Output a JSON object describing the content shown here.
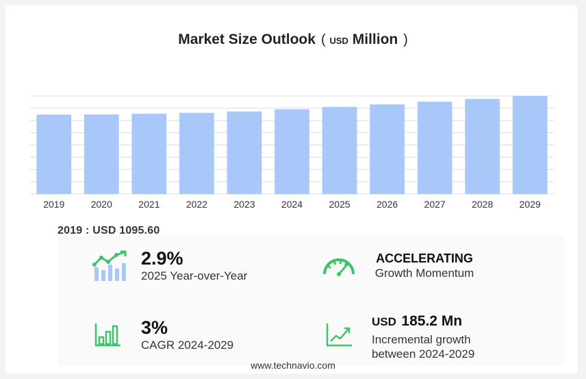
{
  "title": {
    "main": "Market Size Outlook",
    "paren_open": "(",
    "unit_small": "USD",
    "unit": "Million",
    "paren_close": ")"
  },
  "chart_data": {
    "type": "bar",
    "title": "Market Size Outlook (USD Million)",
    "categories": [
      "2019",
      "2020",
      "2021",
      "2022",
      "2023",
      "2024",
      "2025",
      "2026",
      "2027",
      "2028",
      "2029"
    ],
    "values": [
      1095.6,
      1096.7,
      1106.4,
      1118.8,
      1138.7,
      1167.6,
      1201.5,
      1236.3,
      1273.8,
      1311.0,
      1352.8
    ],
    "ylim": [
      0,
      1352.8
    ],
    "xlabel": "",
    "ylabel": "",
    "grid": true,
    "bar_color": "#a8c8fa"
  },
  "base_value": "2019 : USD  1095.60",
  "stats": {
    "yoy": {
      "value": "2.9%",
      "label": "2025 Year-over-Year",
      "icon": "growth-chart-icon"
    },
    "momentum": {
      "value": "ACCELERATING",
      "label": "Growth Momentum",
      "icon": "speedometer-icon"
    },
    "cagr": {
      "value": "3%",
      "label": "CAGR 2024-2029",
      "icon": "bar-chart-icon"
    },
    "incremental": {
      "currency": "USD",
      "value": "185.2 Mn",
      "label_line1": "Incremental growth",
      "label_line2": "between 2024-2029",
      "icon": "line-chart-icon"
    }
  },
  "colors": {
    "accent_green": "#3cc46b",
    "bar": "#a8c8fa",
    "grid": "#dcdcdc"
  },
  "footer": "www.technavio.com"
}
